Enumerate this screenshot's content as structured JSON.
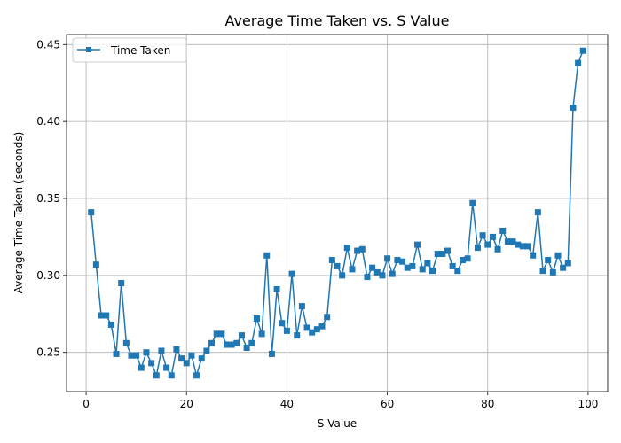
{
  "chart_data": {
    "type": "line",
    "title": "Average Time Taken vs. S Value",
    "xlabel": "S Value",
    "ylabel": "Average Time Taken (seconds)",
    "xlim": [
      -3.9,
      103.9
    ],
    "ylim": [
      0.2245,
      0.4565
    ],
    "x_ticks": [
      0,
      20,
      40,
      60,
      80,
      100
    ],
    "y_ticks": [
      0.25,
      0.3,
      0.35,
      0.4,
      0.45
    ],
    "x_tick_labels": [
      "0",
      "20",
      "40",
      "60",
      "80",
      "100"
    ],
    "y_tick_labels": [
      "0.25",
      "0.30",
      "0.35",
      "0.40",
      "0.45"
    ],
    "grid": true,
    "legend_position": "upper left",
    "marker": "square",
    "series": [
      {
        "name": "Time Taken",
        "color": "#1f77b4",
        "x": [
          1,
          2,
          3,
          4,
          5,
          6,
          7,
          8,
          9,
          10,
          11,
          12,
          13,
          14,
          15,
          16,
          17,
          18,
          19,
          20,
          21,
          22,
          23,
          24,
          25,
          26,
          27,
          28,
          29,
          30,
          31,
          32,
          33,
          34,
          35,
          36,
          37,
          38,
          39,
          40,
          41,
          42,
          43,
          44,
          45,
          46,
          47,
          48,
          49,
          50,
          51,
          52,
          53,
          54,
          55,
          56,
          57,
          58,
          59,
          60,
          61,
          62,
          63,
          64,
          65,
          66,
          67,
          68,
          69,
          70,
          71,
          72,
          73,
          74,
          75,
          76,
          77,
          78,
          79,
          80,
          81,
          82,
          83,
          84,
          85,
          86,
          87,
          88,
          89,
          90,
          91,
          92,
          93,
          94,
          95,
          96,
          97,
          98,
          99
        ],
        "y": [
          0.341,
          0.307,
          0.274,
          0.274,
          0.268,
          0.249,
          0.295,
          0.256,
          0.248,
          0.248,
          0.24,
          0.25,
          0.243,
          0.235,
          0.251,
          0.24,
          0.235,
          0.252,
          0.246,
          0.243,
          0.248,
          0.235,
          0.246,
          0.251,
          0.256,
          0.262,
          0.262,
          0.255,
          0.255,
          0.256,
          0.261,
          0.253,
          0.256,
          0.272,
          0.262,
          0.313,
          0.249,
          0.291,
          0.269,
          0.264,
          0.301,
          0.261,
          0.28,
          0.266,
          0.263,
          0.265,
          0.267,
          0.273,
          0.31,
          0.306,
          0.3,
          0.318,
          0.304,
          0.316,
          0.317,
          0.299,
          0.305,
          0.302,
          0.3,
          0.311,
          0.301,
          0.31,
          0.309,
          0.305,
          0.306,
          0.32,
          0.304,
          0.308,
          0.303,
          0.314,
          0.314,
          0.316,
          0.306,
          0.303,
          0.31,
          0.311,
          0.347,
          0.318,
          0.326,
          0.32,
          0.325,
          0.317,
          0.329,
          0.322,
          0.322,
          0.32,
          0.319,
          0.319,
          0.313,
          0.341,
          0.303,
          0.31,
          0.302,
          0.313,
          0.305,
          0.308,
          0.409,
          0.438,
          0.446
        ]
      }
    ]
  }
}
